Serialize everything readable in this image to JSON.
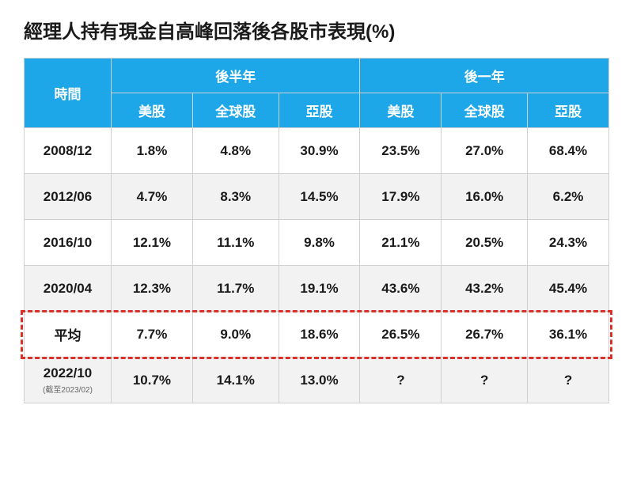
{
  "title": "經理人持有現金自高峰回落後各股市表現(%)",
  "header": {
    "time": "時間",
    "group1": "後半年",
    "group2": "後一年",
    "cols": [
      "美股",
      "全球股",
      "亞股",
      "美股",
      "全球股",
      "亞股"
    ]
  },
  "rows": [
    {
      "time": "2008/12",
      "vals": [
        "1.8%",
        "4.8%",
        "30.9%",
        "23.5%",
        "27.0%",
        "68.4%"
      ]
    },
    {
      "time": "2012/06",
      "vals": [
        "4.7%",
        "8.3%",
        "14.5%",
        "17.9%",
        "16.0%",
        "6.2%"
      ]
    },
    {
      "time": "2016/10",
      "vals": [
        "12.1%",
        "11.1%",
        "9.8%",
        "21.1%",
        "20.5%",
        "24.3%"
      ]
    },
    {
      "time": "2020/04",
      "vals": [
        "12.3%",
        "11.7%",
        "19.1%",
        "43.6%",
        "43.2%",
        "45.4%"
      ]
    },
    {
      "time": "平均",
      "vals": [
        "7.7%",
        "9.0%",
        "18.6%",
        "26.5%",
        "26.7%",
        "36.1%"
      ]
    },
    {
      "time": "2022/10",
      "time_sub": "(截至2023/02)",
      "vals": [
        "10.7%",
        "14.1%",
        "13.0%",
        "?",
        "?",
        "?"
      ]
    }
  ],
  "highlight_row_index": 4,
  "colors": {
    "header_bg": "#1ea7e8",
    "header_text": "#ffffff",
    "border": "#d0d0d0",
    "row_alt_bg": "#f2f2f2",
    "highlight_border": "#d9302b",
    "text": "#1a1a1a"
  }
}
